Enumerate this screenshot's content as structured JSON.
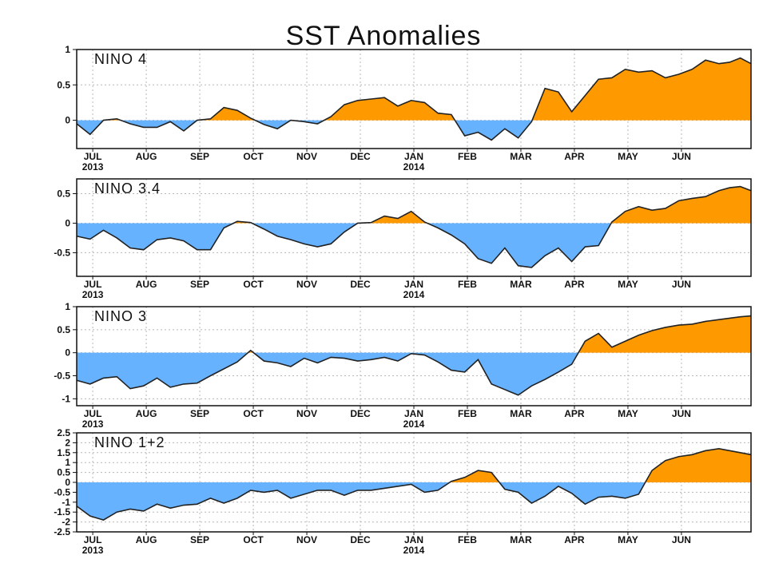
{
  "title": "SST Anomalies",
  "colors": {
    "positive": "#ff9900",
    "negative": "#66b2ff",
    "line": "#222222"
  },
  "chart_data": [
    {
      "type": "area",
      "label": "NINO 4",
      "ylim": [
        -0.4,
        1
      ],
      "yticks": [
        "1",
        "0.5",
        "0"
      ],
      "ytick_values": [
        1,
        0.5,
        0
      ],
      "x": [
        0,
        0.25,
        0.5,
        0.75,
        1,
        1.25,
        1.5,
        1.75,
        2,
        2.25,
        2.5,
        2.75,
        3,
        3.25,
        3.5,
        3.75,
        4,
        4.25,
        4.5,
        4.75,
        5,
        5.25,
        5.5,
        5.75,
        6,
        6.25,
        6.5,
        6.75,
        7,
        7.25,
        7.5,
        7.75,
        8,
        8.25,
        8.5,
        8.75,
        9,
        9.25,
        9.5,
        9.75,
        10,
        10.25,
        10.5,
        10.75,
        11,
        11.25,
        11.5,
        11.75,
        12
      ],
      "values": [
        -0.05,
        -0.2,
        0,
        0.02,
        -0.05,
        -0.1,
        -0.1,
        -0.02,
        -0.15,
        0,
        0.02,
        0.18,
        0.14,
        0.03,
        -0.06,
        -0.12,
        0,
        -0.02,
        -0.05,
        0.05,
        0.22,
        0.28,
        0.3,
        0.32,
        0.2,
        0.28,
        0.25,
        0.1,
        0.08,
        -0.22,
        -0.17,
        -0.28,
        -0.12,
        -0.25,
        -0.02,
        0.45,
        0.4,
        0.12,
        0.35,
        0.58,
        0.6,
        0.72,
        0.68,
        0.7,
        0.6,
        0.65,
        0.72,
        0.85,
        0.8
      ],
      "x_end_values": [
        0.82,
        0.88,
        0.8
      ],
      "xticks": [
        "JUL\n2013",
        "AUG",
        "SEP",
        "OCT",
        "NOV",
        "DEC",
        "JAN\n2014",
        "FEB",
        "MAR",
        "APR",
        "MAY",
        "JUN"
      ]
    },
    {
      "type": "area",
      "label": "NINO 3.4",
      "ylim": [
        -0.9,
        0.75
      ],
      "yticks": [
        "0.5",
        "0",
        "-0.5"
      ],
      "ytick_values": [
        0.5,
        0,
        -0.5
      ],
      "x": [
        0,
        0.25,
        0.5,
        0.75,
        1,
        1.25,
        1.5,
        1.75,
        2,
        2.25,
        2.5,
        2.75,
        3,
        3.25,
        3.5,
        3.75,
        4,
        4.25,
        4.5,
        4.75,
        5,
        5.25,
        5.5,
        5.75,
        6,
        6.25,
        6.5,
        6.75,
        7,
        7.25,
        7.5,
        7.75,
        8,
        8.25,
        8.5,
        8.75,
        9,
        9.25,
        9.5,
        9.75,
        10,
        10.25,
        10.5,
        10.75,
        11,
        11.25,
        11.5,
        11.75,
        12
      ],
      "values": [
        -0.22,
        -0.27,
        -0.12,
        -0.25,
        -0.42,
        -0.45,
        -0.28,
        -0.25,
        -0.3,
        -0.45,
        -0.45,
        -0.08,
        0.03,
        0.01,
        -0.1,
        -0.22,
        -0.28,
        -0.35,
        -0.4,
        -0.35,
        -0.15,
        0,
        0.01,
        0.12,
        0.08,
        0.2,
        0.02,
        -0.08,
        -0.2,
        -0.35,
        -0.6,
        -0.68,
        -0.42,
        -0.72,
        -0.75,
        -0.55,
        -0.42,
        -0.65,
        -0.4,
        -0.38,
        0.02,
        0.2,
        0.28,
        0.22,
        0.25,
        0.38,
        0.42,
        0.45,
        0.55
      ],
      "x_end_values": [
        0.6,
        0.62,
        0.55
      ],
      "xticks": [
        "JUL\n2013",
        "AUG",
        "SEP",
        "OCT",
        "NOV",
        "DEC",
        "JAN\n2014",
        "FEB",
        "MAR",
        "APR",
        "MAY",
        "JUN"
      ]
    },
    {
      "type": "area",
      "label": "NINO 3",
      "ylim": [
        -1.15,
        1
      ],
      "yticks": [
        "1",
        "0.5",
        "0",
        "-0.5",
        "-1"
      ],
      "ytick_values": [
        1,
        0.5,
        0,
        -0.5,
        -1
      ],
      "x": [
        0,
        0.25,
        0.5,
        0.75,
        1,
        1.25,
        1.5,
        1.75,
        2,
        2.25,
        2.5,
        2.75,
        3,
        3.25,
        3.5,
        3.75,
        4,
        4.25,
        4.5,
        4.75,
        5,
        5.25,
        5.5,
        5.75,
        6,
        6.25,
        6.5,
        6.75,
        7,
        7.25,
        7.5,
        7.75,
        8,
        8.25,
        8.5,
        8.75,
        9,
        9.25,
        9.5,
        9.75,
        10,
        10.25,
        10.5,
        10.75,
        11,
        11.25,
        11.5,
        11.75,
        12
      ],
      "values": [
        -0.6,
        -0.68,
        -0.55,
        -0.52,
        -0.78,
        -0.72,
        -0.55,
        -0.75,
        -0.68,
        -0.66,
        -0.5,
        -0.35,
        -0.2,
        0.05,
        -0.18,
        -0.22,
        -0.3,
        -0.12,
        -0.22,
        -0.1,
        -0.12,
        -0.18,
        -0.15,
        -0.1,
        -0.18,
        -0.02,
        -0.05,
        -0.2,
        -0.38,
        -0.42,
        -0.15,
        -0.68,
        -0.8,
        -0.92,
        -0.72,
        -0.58,
        -0.42,
        -0.25,
        0.25,
        0.42,
        0.12,
        0.25,
        0.38,
        0.48,
        0.55,
        0.6,
        0.62,
        0.68,
        0.72
      ],
      "x_end_values": [
        0.75,
        0.78,
        0.8
      ],
      "xticks": [
        "JUL\n2013",
        "AUG",
        "SEP",
        "OCT",
        "NOV",
        "DEC",
        "JAN\n2014",
        "FEB",
        "MAR",
        "APR",
        "MAY",
        "JUN"
      ]
    },
    {
      "type": "area",
      "label": "NINO 1+2",
      "ylim": [
        -2.5,
        2.5
      ],
      "yticks": [
        "2.5",
        "2",
        "1.5",
        "1",
        "0.5",
        "0",
        "-0.5",
        "-1",
        "-1.5",
        "-2",
        "-2.5"
      ],
      "ytick_values": [
        2.5,
        2,
        1.5,
        1,
        0.5,
        0,
        -0.5,
        -1,
        -1.5,
        -2,
        -2.5
      ],
      "x": [
        0,
        0.25,
        0.5,
        0.75,
        1,
        1.25,
        1.5,
        1.75,
        2,
        2.25,
        2.5,
        2.75,
        3,
        3.25,
        3.5,
        3.75,
        4,
        4.25,
        4.5,
        4.75,
        5,
        5.25,
        5.5,
        5.75,
        6,
        6.25,
        6.5,
        6.75,
        7,
        7.25,
        7.5,
        7.75,
        8,
        8.25,
        8.5,
        8.75,
        9,
        9.25,
        9.5,
        9.75,
        10,
        10.25,
        10.5,
        10.75,
        11,
        11.25,
        11.5,
        11.75,
        12
      ],
      "values": [
        -1.2,
        -1.7,
        -1.9,
        -1.5,
        -1.35,
        -1.45,
        -1.1,
        -1.3,
        -1.15,
        -1.1,
        -0.8,
        -1.05,
        -0.8,
        -0.4,
        -0.5,
        -0.4,
        -0.8,
        -0.6,
        -0.4,
        -0.4,
        -0.65,
        -0.4,
        -0.4,
        -0.3,
        -0.2,
        -0.1,
        -0.5,
        -0.4,
        0.05,
        0.25,
        0.6,
        0.5,
        -0.35,
        -0.5,
        -1.05,
        -0.7,
        -0.2,
        -0.55,
        -1.1,
        -0.75,
        -0.7,
        -0.8,
        -0.6,
        0.6,
        1.1,
        1.3,
        1.4,
        1.6,
        1.7
      ],
      "x_end_values": [
        1.6,
        1.5,
        1.4
      ],
      "xticks": [
        "JUL\n2013",
        "AUG",
        "SEP",
        "OCT",
        "NOV",
        "DEC",
        "JAN\n2014",
        "FEB",
        "MAR",
        "APR",
        "MAY",
        "JUN"
      ]
    }
  ]
}
